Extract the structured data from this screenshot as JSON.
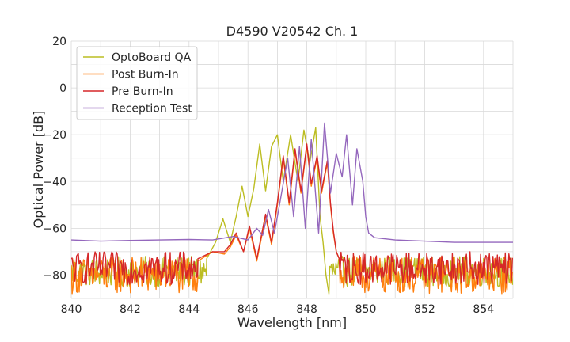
{
  "chart_data": {
    "type": "line",
    "title": "D4590 V20542 Ch. 1",
    "xlabel": "Wavelength [nm]",
    "ylabel": "Optical Power [dB]",
    "xlim": [
      840,
      855
    ],
    "ylim": [
      -90,
      20
    ],
    "xticks": [
      840,
      842,
      844,
      846,
      848,
      850,
      852,
      854
    ],
    "yticks": [
      20,
      0,
      -20,
      -40,
      -60,
      -80
    ],
    "ytick_labels": [
      "20",
      "0",
      "−20",
      "−40",
      "−60",
      "−80"
    ],
    "grid": true,
    "legend_position": "top-left",
    "series": [
      {
        "name": "OptoBoard QA",
        "color": "#bcbd22",
        "floor": [
          -85,
          -72
        ],
        "floor_range": [
          840,
          855
        ],
        "points": [
          [
            844.6,
            -73
          ],
          [
            844.9,
            -66
          ],
          [
            845.15,
            -56
          ],
          [
            845.4,
            -66
          ],
          [
            845.6,
            -55
          ],
          [
            845.8,
            -42
          ],
          [
            846.0,
            -55
          ],
          [
            846.2,
            -43
          ],
          [
            846.4,
            -24
          ],
          [
            846.6,
            -44
          ],
          [
            846.8,
            -25
          ],
          [
            847.0,
            -20
          ],
          [
            847.2,
            -40
          ],
          [
            847.45,
            -20
          ],
          [
            847.7,
            -40
          ],
          [
            847.9,
            -18
          ],
          [
            848.1,
            -32
          ],
          [
            848.3,
            -17
          ],
          [
            848.45,
            -55
          ],
          [
            848.55,
            -66
          ],
          [
            848.65,
            -80
          ],
          [
            848.75,
            -88
          ]
        ]
      },
      {
        "name": "Post Burn-In",
        "color": "#ff7f0e",
        "floor": [
          -88,
          -72
        ],
        "floor_range": [
          840,
          855
        ],
        "points": [
          [
            844.3,
            -74
          ],
          [
            844.8,
            -70
          ],
          [
            845.2,
            -71
          ],
          [
            845.4,
            -68
          ],
          [
            845.6,
            -63
          ],
          [
            845.85,
            -70
          ],
          [
            846.05,
            -60
          ],
          [
            846.3,
            -74
          ],
          [
            846.6,
            -55
          ],
          [
            846.8,
            -67
          ],
          [
            847.0,
            -50
          ],
          [
            847.2,
            -30
          ],
          [
            847.4,
            -50
          ],
          [
            847.6,
            -27
          ],
          [
            847.8,
            -45
          ],
          [
            848.0,
            -25
          ],
          [
            848.15,
            -42
          ],
          [
            848.35,
            -30
          ],
          [
            848.5,
            -45
          ],
          [
            848.7,
            -32
          ],
          [
            848.8,
            -50
          ],
          [
            848.9,
            -62
          ],
          [
            849.0,
            -70
          ],
          [
            849.1,
            -73
          ]
        ]
      },
      {
        "name": "Pre Burn-In",
        "color": "#d62728",
        "floor": [
          -84,
          -70
        ],
        "floor_range": [
          840,
          855
        ],
        "points": [
          [
            844.3,
            -73
          ],
          [
            844.8,
            -70
          ],
          [
            845.2,
            -70
          ],
          [
            845.4,
            -67
          ],
          [
            845.6,
            -62
          ],
          [
            845.85,
            -70
          ],
          [
            846.05,
            -59
          ],
          [
            846.3,
            -73
          ],
          [
            846.6,
            -54
          ],
          [
            846.8,
            -66
          ],
          [
            847.0,
            -49
          ],
          [
            847.2,
            -29
          ],
          [
            847.4,
            -49
          ],
          [
            847.6,
            -26
          ],
          [
            847.8,
            -44
          ],
          [
            848.0,
            -24
          ],
          [
            848.15,
            -41
          ],
          [
            848.35,
            -29
          ],
          [
            848.5,
            -44
          ],
          [
            848.7,
            -31
          ],
          [
            848.8,
            -49
          ],
          [
            848.9,
            -61
          ],
          [
            849.0,
            -70
          ],
          [
            849.1,
            -73
          ]
        ]
      },
      {
        "name": "Reception Test",
        "color": "#9467bd",
        "points": [
          [
            840.0,
            -65
          ],
          [
            841.0,
            -65.5
          ],
          [
            842.0,
            -65.2
          ],
          [
            843.0,
            -65
          ],
          [
            844.0,
            -64.8
          ],
          [
            844.8,
            -65
          ],
          [
            845.5,
            -63.5
          ],
          [
            846.0,
            -65
          ],
          [
            846.3,
            -60
          ],
          [
            846.5,
            -63
          ],
          [
            846.7,
            -52
          ],
          [
            846.9,
            -62
          ],
          [
            847.1,
            -48
          ],
          [
            847.35,
            -30
          ],
          [
            847.55,
            -55
          ],
          [
            847.75,
            -25
          ],
          [
            847.95,
            -60
          ],
          [
            848.15,
            -22
          ],
          [
            848.4,
            -62
          ],
          [
            848.6,
            -15
          ],
          [
            848.8,
            -45
          ],
          [
            849.0,
            -28
          ],
          [
            849.2,
            -38
          ],
          [
            849.35,
            -20
          ],
          [
            849.55,
            -50
          ],
          [
            849.7,
            -26
          ],
          [
            849.9,
            -40
          ],
          [
            850.0,
            -55
          ],
          [
            850.1,
            -62
          ],
          [
            850.3,
            -64
          ],
          [
            851.0,
            -65
          ],
          [
            852.0,
            -65.5
          ],
          [
            853.0,
            -66
          ],
          [
            854.0,
            -66
          ],
          [
            855.0,
            -66
          ]
        ]
      }
    ]
  }
}
